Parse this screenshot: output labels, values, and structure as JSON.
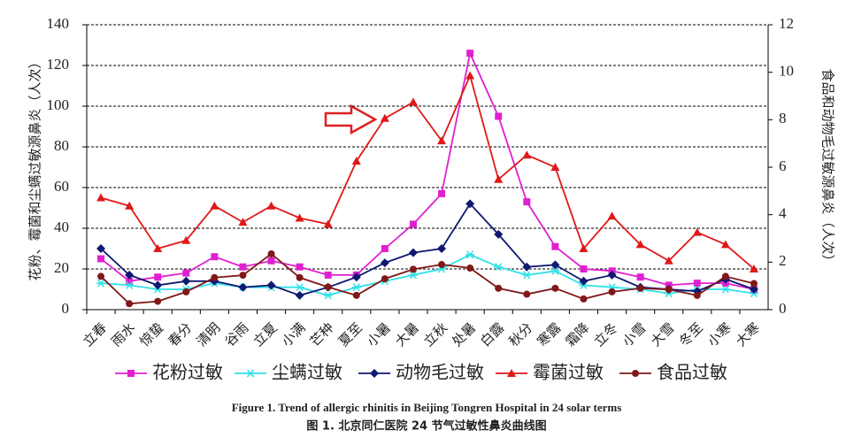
{
  "chart_data": {
    "type": "line",
    "caption": "Figure 1. Trend of allergic rhinitis in Beijing Tongren Hospital in 24 solar terms",
    "caption_cn": "图 1. 北京同仁医院 24 节气过敏性鼻炎曲线图",
    "y_label": "花粉、霉菌和尘螨过敏源鼻炎（人次）",
    "y2_label": "食品和动物毛过敏源鼻炎（人次）",
    "categories": [
      "立春",
      "雨水",
      "惊蛰",
      "春分",
      "清明",
      "谷雨",
      "立夏",
      "小满",
      "芒种",
      "夏至",
      "小暑",
      "大暑",
      "立秋",
      "处暑",
      "白露",
      "秋分",
      "寒露",
      "霜降",
      "立冬",
      "小雪",
      "大雪",
      "冬至",
      "小寒",
      "大寒"
    ],
    "series": [
      {
        "name": "花粉过敏",
        "color": "#e020d0",
        "marker": "square",
        "values": [
          25,
          14,
          16,
          18,
          26,
          21,
          24,
          21,
          17,
          17,
          30,
          42,
          57,
          126,
          95,
          53,
          31,
          20,
          19,
          16,
          12,
          13,
          13,
          10
        ]
      },
      {
        "name": "尘螨过敏",
        "color": "#30e0e8",
        "marker": "star",
        "values": [
          13,
          12,
          10,
          10,
          13,
          11,
          11,
          11,
          7,
          11,
          14,
          17,
          20,
          27,
          21,
          17,
          19,
          12,
          11,
          10,
          8,
          10,
          10,
          8
        ]
      },
      {
        "name": "动物毛过敏",
        "color": "#101870",
        "marker": "diamond",
        "values": [
          30,
          17,
          12,
          14,
          14,
          11,
          12,
          7,
          11,
          16,
          23,
          28,
          30,
          52,
          37,
          21,
          22,
          14,
          17,
          11,
          10,
          9,
          15,
          10
        ]
      },
      {
        "name": "霉菌过敏",
        "color": "#e01818",
        "marker": "triangle",
        "values": [
          55,
          51,
          30,
          34,
          51,
          43,
          51,
          45,
          42,
          73,
          94,
          102,
          83,
          115,
          64,
          76,
          70,
          30,
          46,
          32,
          24,
          38,
          32,
          20
        ]
      },
      {
        "name": "食品过敏",
        "color": "#801818",
        "marker": "circle",
        "axis": "y2",
        "values": [
          1.4,
          0.25,
          0.35,
          0.75,
          1.35,
          1.45,
          2.35,
          1.35,
          0.95,
          0.6,
          1.3,
          1.7,
          1.9,
          1.75,
          0.9,
          0.65,
          0.9,
          0.45,
          0.75,
          0.9,
          0.85,
          0.6,
          1.4,
          1.1
        ]
      }
    ],
    "ylim": [
      0,
      140
    ],
    "yticks": [
      0,
      20,
      40,
      60,
      80,
      100,
      120,
      140
    ],
    "y2lim": [
      0,
      12
    ],
    "y2ticks": [
      0,
      2,
      4,
      6,
      8,
      10,
      12
    ],
    "grid": true
  }
}
